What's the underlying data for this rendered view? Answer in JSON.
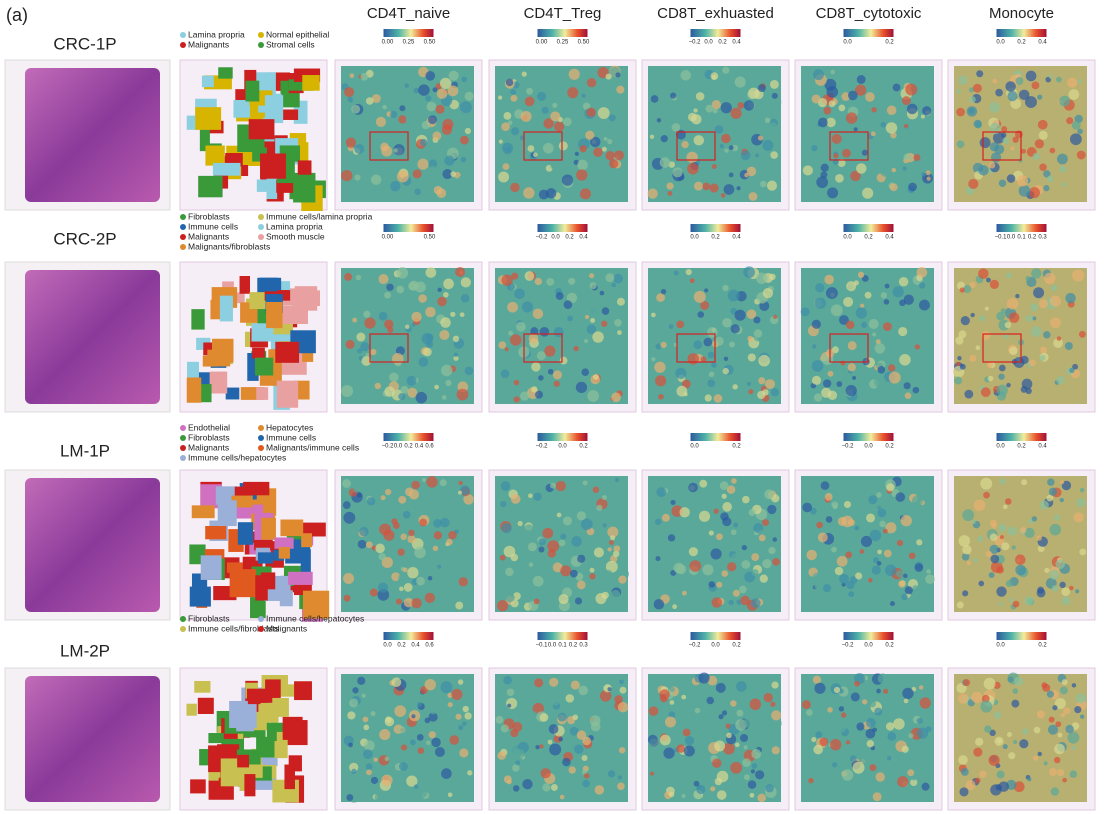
{
  "panel_label": "(a)",
  "columns": [
    "CD4T_naive",
    "CD4T_Treg",
    "CD8T_exhuasted",
    "CD8T_cytotoxic",
    "Monocyte"
  ],
  "rows": [
    {
      "sample": "CRC-1P",
      "legend": [
        {
          "name": "Lamina propria",
          "color": "#8ccfe0"
        },
        {
          "name": "Normal epithelial",
          "color": "#d6b400"
        },
        {
          "name": "Malignants",
          "color": "#cc1f1f"
        },
        {
          "name": "Stromal cells",
          "color": "#3a9a3a"
        }
      ],
      "colorbars": [
        [
          "0.00",
          "0.25",
          "0.50"
        ],
        [
          "0.00",
          "0.25",
          "0.50"
        ],
        [
          "−0.2",
          "0.0",
          "0.2",
          "0.4"
        ],
        [
          "0.0",
          "0.2"
        ],
        [
          "0.0",
          "0.2",
          "0.4"
        ]
      ]
    },
    {
      "sample": "CRC-2P",
      "legend": [
        {
          "name": "Fibroblasts",
          "color": "#3a9a3a"
        },
        {
          "name": "Immune cells/lamina propria",
          "color": "#c8c050"
        },
        {
          "name": "Immune cells",
          "color": "#2166ac"
        },
        {
          "name": "Lamina propria",
          "color": "#8ccfe0"
        },
        {
          "name": "Malignants",
          "color": "#cc1f1f"
        },
        {
          "name": "Smooth muscle",
          "color": "#e8a0a0"
        },
        {
          "name": "Malignants/fibroblasts",
          "color": "#e08a30"
        }
      ],
      "colorbars": [
        [
          "0.00",
          "0.50"
        ],
        [
          "−0.2",
          "0.0",
          "0.2",
          "0.4"
        ],
        [
          "0.0",
          "0.2",
          "0.4"
        ],
        [
          "0.0",
          "0.2",
          "0.4"
        ],
        [
          "−0.1",
          "0.0",
          "0.1",
          "0.2",
          "0.3"
        ]
      ]
    },
    {
      "sample": "LM-1P",
      "legend": [
        {
          "name": "Endothelial",
          "color": "#d070c0"
        },
        {
          "name": "Hepatocytes",
          "color": "#e08a30"
        },
        {
          "name": "Fibroblasts",
          "color": "#3a9a3a"
        },
        {
          "name": "Immune cells",
          "color": "#2166ac"
        },
        {
          "name": "Malignants",
          "color": "#cc1f1f"
        },
        {
          "name": "Malignants/immune cells",
          "color": "#e05a20"
        },
        {
          "name": "Immune cells/hepatocytes",
          "color": "#9ab0d8"
        }
      ],
      "colorbars": [
        [
          "−0.2",
          "0.0",
          "0.2",
          "0.4",
          "0.6"
        ],
        [
          "−0.2",
          "0.0",
          "0.2"
        ],
        [
          "0.0",
          "0.2"
        ],
        [
          "−0.2",
          "0.0",
          "0.2"
        ],
        [
          "0.0",
          "0.2",
          "0.4"
        ]
      ]
    },
    {
      "sample": "LM-2P",
      "legend": [
        {
          "name": "Fibroblasts",
          "color": "#3a9a3a"
        },
        {
          "name": "Immune cells/hepatocytes",
          "color": "#9ab0d8"
        },
        {
          "name": "Immune cells/fibroblasts",
          "color": "#c8c050"
        },
        {
          "name": "Malignants",
          "color": "#cc1f1f"
        }
      ],
      "colorbars": [
        [
          "0.0",
          "0.2",
          "0.4",
          "0.6"
        ],
        [
          "−0.1",
          "0.0",
          "0.1",
          "0.2",
          "0.3"
        ],
        [
          "−0.2",
          "0.0",
          "0.2"
        ],
        [
          "−0.2",
          "0.0",
          "0.2"
        ],
        [
          "0.0",
          "0.2"
        ]
      ]
    }
  ]
}
